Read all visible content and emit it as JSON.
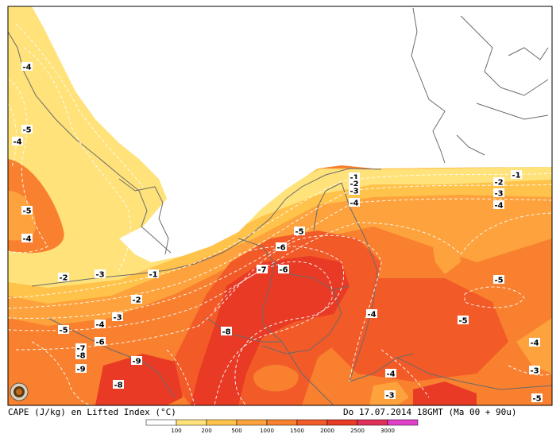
{
  "caption": {
    "title": "CAPE (J/kg) en Lifted Index (°C)",
    "datetime": "Do 17.07.2014 18GMT (Ma 00 + 90u)"
  },
  "colors": {
    "sea_land_white": "#ffffff",
    "cape_100": "#ffe27a",
    "cape_200": "#ffc24a",
    "cape_500": "#fda23c",
    "cape_1000": "#f8802e",
    "cape_1500": "#f25a28",
    "cape_2000": "#e83a24",
    "cape_2500": "#e0305a",
    "cape_3000": "#e040c8",
    "border": "#6b6b6b"
  },
  "legend": {
    "ticks": [
      "100",
      "200",
      "500",
      "1000",
      "1500",
      "2000",
      "2500",
      "3000"
    ]
  },
  "li_labels": [
    {
      "text": "-4"
    },
    {
      "text": "-5"
    },
    {
      "text": "-4"
    },
    {
      "text": "-5"
    },
    {
      "text": "-4"
    },
    {
      "text": "-2"
    },
    {
      "text": "-3"
    },
    {
      "text": "-1"
    },
    {
      "text": "-2"
    },
    {
      "text": "-3"
    },
    {
      "text": "-4"
    },
    {
      "text": "-5"
    },
    {
      "text": "-6"
    },
    {
      "text": "-7"
    },
    {
      "text": "-8"
    },
    {
      "text": "-9"
    },
    {
      "text": "-9"
    },
    {
      "text": "-8"
    },
    {
      "text": "-7"
    },
    {
      "text": "-8"
    },
    {
      "text": "-6"
    },
    {
      "text": "-5"
    },
    {
      "text": "-6"
    },
    {
      "text": "-7"
    },
    {
      "text": "-1"
    },
    {
      "text": "-2"
    },
    {
      "text": "-3"
    },
    {
      "text": "-4"
    },
    {
      "text": "-1"
    },
    {
      "text": "-2"
    },
    {
      "text": "-3"
    },
    {
      "text": "-4"
    },
    {
      "text": "-5"
    },
    {
      "text": "-4"
    },
    {
      "text": "-5"
    },
    {
      "text": "-4"
    },
    {
      "text": "-3"
    },
    {
      "text": "-4"
    },
    {
      "text": "-3"
    },
    {
      "text": "-5"
    }
  ]
}
